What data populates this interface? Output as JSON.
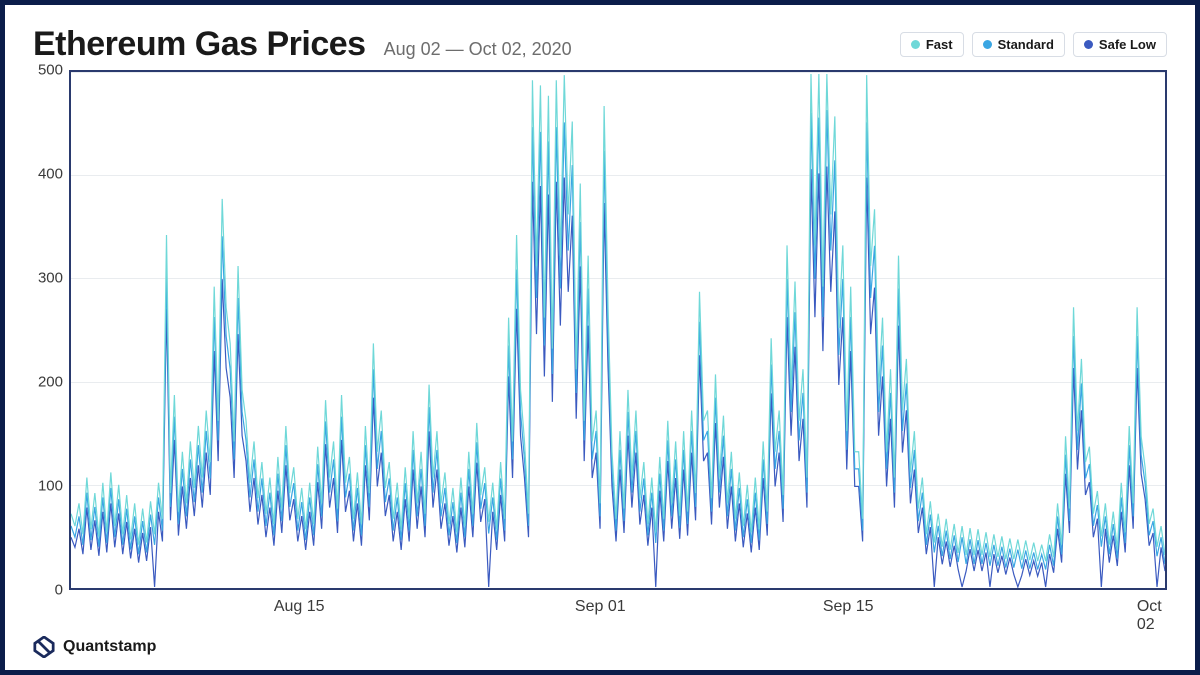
{
  "header": {
    "title": "Ethereum Gas Prices",
    "subtitle": "Aug 02 — Oct 02, 2020"
  },
  "legend": [
    {
      "label": "Fast",
      "color": "#6fd8d8"
    },
    {
      "label": "Standard",
      "color": "#3aa6e3"
    },
    {
      "label": "Safe Low",
      "color": "#3b5ac0"
    }
  ],
  "footer": {
    "brand": "Quantstamp",
    "brand_color": "#1a2a5c"
  },
  "chart": {
    "type": "line",
    "background_color": "#ffffff",
    "border_color": "#2a3a6e",
    "border_width": 2,
    "grid_color": "#e9ecef",
    "label_fontsize": 15,
    "label_color": "#3a3a3a",
    "ylim": [
      0,
      500
    ],
    "yticks": [
      0,
      100,
      200,
      300,
      400,
      500
    ],
    "x_domain_days": 62,
    "xticks": [
      {
        "label": "Aug 15",
        "day": 13
      },
      {
        "label": "Sep 01",
        "day": 30
      },
      {
        "label": "Sep 15",
        "day": 44
      },
      {
        "label": "Oct 02",
        "day": 61
      }
    ],
    "line_width": 1.2,
    "fill_opacity": 0.0,
    "series": [
      {
        "name": "safe_low",
        "color": "#3b5ac0",
        "offset": 0,
        "scale": 0.82,
        "drops": true
      },
      {
        "name": "standard",
        "color": "#3aa6e3",
        "offset": 5,
        "scale": 0.92,
        "drops": false
      },
      {
        "name": "fast",
        "color": "#6fd8d8",
        "offset": 12,
        "scale": 1.0,
        "drops": false
      }
    ],
    "base_profile": [
      60,
      48,
      70,
      40,
      95,
      45,
      80,
      38,
      90,
      42,
      100,
      48,
      88,
      40,
      78,
      35,
      70,
      30,
      65,
      32,
      72,
      40,
      90,
      55,
      330,
      80,
      175,
      62,
      120,
      70,
      130,
      85,
      145,
      95,
      160,
      110,
      280,
      150,
      365,
      260,
      225,
      130,
      300,
      180,
      150,
      90,
      130,
      75,
      110,
      60,
      95,
      50,
      115,
      65,
      145,
      80,
      105,
      55,
      85,
      45,
      90,
      50,
      125,
      70,
      170,
      95,
      130,
      65,
      175,
      90,
      115,
      55,
      100,
      50,
      145,
      80,
      225,
      120,
      160,
      85,
      110,
      55,
      90,
      45,
      105,
      55,
      140,
      70,
      120,
      60,
      185,
      95,
      140,
      70,
      100,
      50,
      85,
      42,
      95,
      48,
      120,
      60,
      148,
      78,
      105,
      52,
      90,
      45,
      110,
      55,
      250,
      130,
      330,
      180,
      130,
      60,
      480,
      300,
      475,
      250,
      465,
      220,
      480,
      310,
      485,
      350,
      440,
      200,
      380,
      150,
      310,
      130,
      160,
      70,
      455,
      260,
      120,
      55,
      140,
      65,
      180,
      95,
      160,
      75,
      110,
      50,
      95,
      42,
      115,
      55,
      150,
      70,
      130,
      58,
      140,
      62,
      160,
      80,
      275,
      150,
      160,
      75,
      195,
      95,
      155,
      70,
      120,
      55,
      100,
      48,
      88,
      42,
      95,
      45,
      130,
      62,
      230,
      120,
      160,
      78,
      320,
      180,
      285,
      150,
      200,
      95,
      495,
      320,
      490,
      280,
      498,
      350,
      445,
      240,
      320,
      140,
      280,
      120,
      120,
      55,
      485,
      300,
      355,
      180,
      250,
      120,
      200,
      95,
      310,
      160,
      210,
      100,
      140,
      65,
      95,
      40,
      72,
      32,
      60,
      28,
      55,
      25,
      50,
      22,
      48,
      20,
      46,
      20,
      45,
      20,
      42,
      18,
      40,
      18,
      38,
      16,
      36,
      16,
      35,
      15,
      34,
      15,
      32,
      14,
      30,
      14,
      40,
      18,
      70,
      30,
      135,
      65,
      260,
      140,
      210,
      110,
      125,
      60,
      82,
      38,
      70,
      30,
      62,
      26,
      90,
      42,
      145,
      70,
      260,
      135,
      105,
      50,
      65,
      28,
      48,
      20
    ]
  }
}
